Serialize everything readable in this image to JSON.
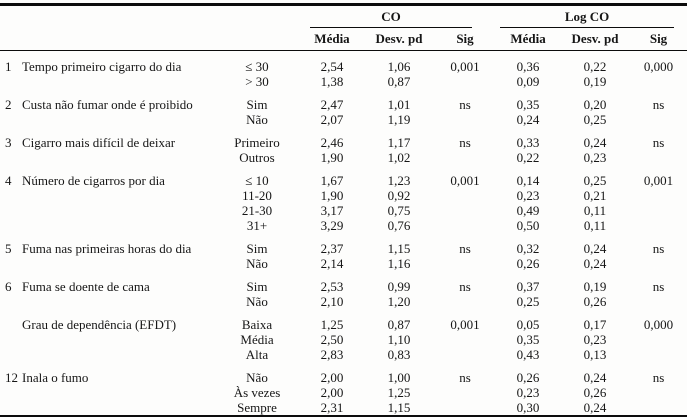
{
  "table": {
    "corner_label": "",
    "groups": {
      "co": "CO",
      "log_co": "Log CO"
    },
    "sub_headers": [
      "Média",
      "Desv. pd",
      "Sig"
    ],
    "rows": [
      {
        "num": "1",
        "question": "Tempo primeiro cigarro do dia",
        "lines": [
          {
            "category": "≤ 30",
            "co_media": "2,54",
            "co_desv": "1,06",
            "co_sig": "0,001",
            "log_media": "0,36",
            "log_desv": "0,22",
            "log_sig": "0,000"
          },
          {
            "category": "> 30",
            "co_media": "1,38",
            "co_desv": "0,87",
            "co_sig": "",
            "log_media": "0,09",
            "log_desv": "0,19",
            "log_sig": ""
          }
        ]
      },
      {
        "num": "2",
        "question": "Custa não fumar onde é proibido",
        "lines": [
          {
            "category": "Sim",
            "co_media": "2,47",
            "co_desv": "1,01",
            "co_sig": "ns",
            "log_media": "0,35",
            "log_desv": "0,20",
            "log_sig": "ns"
          },
          {
            "category": "Não",
            "co_media": "2,07",
            "co_desv": "1,19",
            "co_sig": "",
            "log_media": "0,24",
            "log_desv": "0,25",
            "log_sig": ""
          }
        ]
      },
      {
        "num": "3",
        "question": "Cigarro mais difícil de deixar",
        "lines": [
          {
            "category": "Primeiro",
            "co_media": "2,46",
            "co_desv": "1,17",
            "co_sig": "ns",
            "log_media": "0,33",
            "log_desv": "0,24",
            "log_sig": "ns"
          },
          {
            "category": "Outros",
            "co_media": "1,90",
            "co_desv": "1,02",
            "co_sig": "",
            "log_media": "0,22",
            "log_desv": "0,23",
            "log_sig": ""
          }
        ]
      },
      {
        "num": "4",
        "question": "Número de cigarros por dia",
        "lines": [
          {
            "category": "≤ 10",
            "co_media": "1,67",
            "co_desv": "1,23",
            "co_sig": "0,001",
            "log_media": "0,14",
            "log_desv": "0,25",
            "log_sig": "0,001"
          },
          {
            "category": "11-20",
            "co_media": "1,90",
            "co_desv": "0,92",
            "co_sig": "",
            "log_media": "0,23",
            "log_desv": "0,21",
            "log_sig": ""
          },
          {
            "category": "21-30",
            "co_media": "3,17",
            "co_desv": "0,75",
            "co_sig": "",
            "log_media": "0,49",
            "log_desv": "0,11",
            "log_sig": ""
          },
          {
            "category": "31+",
            "co_media": "3,29",
            "co_desv": "0,76",
            "co_sig": "",
            "log_media": "0,50",
            "log_desv": "0,11",
            "log_sig": ""
          }
        ]
      },
      {
        "num": "5",
        "question": "Fuma nas primeiras horas do dia",
        "lines": [
          {
            "category": "Sim",
            "co_media": "2,37",
            "co_desv": "1,15",
            "co_sig": "ns",
            "log_media": "0,32",
            "log_desv": "0,24",
            "log_sig": "ns"
          },
          {
            "category": "Não",
            "co_media": "2,14",
            "co_desv": "1,16",
            "co_sig": "",
            "log_media": "0,26",
            "log_desv": "0,24",
            "log_sig": ""
          }
        ]
      },
      {
        "num": "6",
        "question": "Fuma se doente de cama",
        "lines": [
          {
            "category": "Sim",
            "co_media": "2,53",
            "co_desv": "0,99",
            "co_sig": "ns",
            "log_media": "0,37",
            "log_desv": "0,19",
            "log_sig": "ns"
          },
          {
            "category": "Não",
            "co_media": "2,10",
            "co_desv": "1,20",
            "co_sig": "",
            "log_media": "0,25",
            "log_desv": "0,26",
            "log_sig": ""
          }
        ]
      },
      {
        "num": "",
        "question": "Grau de dependência (EFDT)",
        "lines": [
          {
            "category": "Baixa",
            "co_media": "1,25",
            "co_desv": "0,87",
            "co_sig": "0,001",
            "log_media": "0,05",
            "log_desv": "0,17",
            "log_sig": "0,000"
          },
          {
            "category": "Média",
            "co_media": "2,50",
            "co_desv": "1,10",
            "co_sig": "",
            "log_media": "0,35",
            "log_desv": "0,23",
            "log_sig": ""
          },
          {
            "category": "Alta",
            "co_media": "2,83",
            "co_desv": "0,83",
            "co_sig": "",
            "log_media": "0,43",
            "log_desv": "0,13",
            "log_sig": ""
          }
        ]
      },
      {
        "num": "12",
        "question": "Inala o fumo",
        "lines": [
          {
            "category": "Não",
            "co_media": "2,00",
            "co_desv": "1,00",
            "co_sig": "ns",
            "log_media": "0,26",
            "log_desv": "0,24",
            "log_sig": "ns"
          },
          {
            "category": "Às vezes",
            "co_media": "2,00",
            "co_desv": "1,25",
            "co_sig": "",
            "log_media": "0,23",
            "log_desv": "0,26",
            "log_sig": ""
          },
          {
            "category": "Sempre",
            "co_media": "2,31",
            "co_desv": "1,15",
            "co_sig": "",
            "log_media": "0,30",
            "log_desv": "0,24",
            "log_sig": ""
          }
        ]
      }
    ]
  }
}
